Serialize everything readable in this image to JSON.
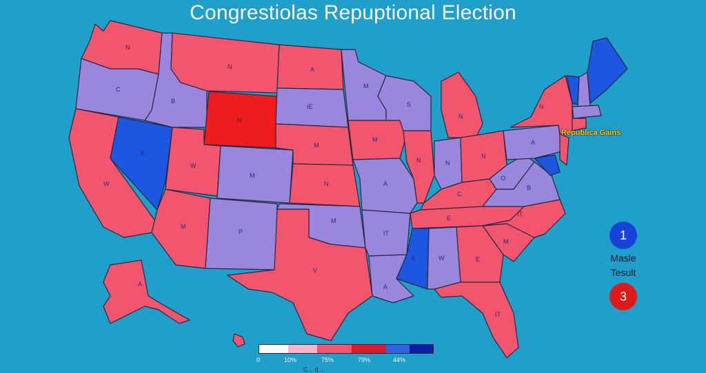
{
  "title": "Congrestiolas Repuptional Election",
  "colors": {
    "background": "#1f9fc9",
    "republican": "#f2566e",
    "strong_republican": "#ee1c1c",
    "swing": "#9a86dc",
    "democrat": "#1b57e0"
  },
  "map_annotation": "Republica Gains",
  "state_labels": {
    "wa": "N",
    "mt": "N",
    "nd": "A",
    "or": "C",
    "id": "B",
    "wy": "N",
    "sd": "IE",
    "mn": "M",
    "wi": "S",
    "mi": "N",
    "ny": "N",
    "pa": "A",
    "ca": "W",
    "nv": "A",
    "ut": "W",
    "co": "M",
    "ne": "M",
    "ia": "M",
    "il": "N",
    "in": "N",
    "oh": "N",
    "ks": "N",
    "mo": "A",
    "ky": "C",
    "wv": "O",
    "va": "B",
    "az": "M",
    "nm": "P",
    "ok": "M",
    "ar": "IT",
    "tn": "E",
    "nc": "IT",
    "tx": "V",
    "la": "A",
    "ms": "E",
    "al": "W",
    "ga": "E",
    "sc": "M",
    "fl": "IT",
    "ak": "A"
  },
  "results": {
    "democrat_count": "1",
    "republican_count": "3",
    "label_line_1": "Masle",
    "label_line_2": "Tesult"
  },
  "legend": {
    "ticks": [
      "0",
      "10%",
      "75%",
      "79%",
      "44%"
    ],
    "colors": [
      "#ffffff",
      "#f4b8c8",
      "#f2566e",
      "#e01a2a",
      "#2f63e6",
      "#0a1fa8"
    ],
    "title": "C... d..."
  }
}
